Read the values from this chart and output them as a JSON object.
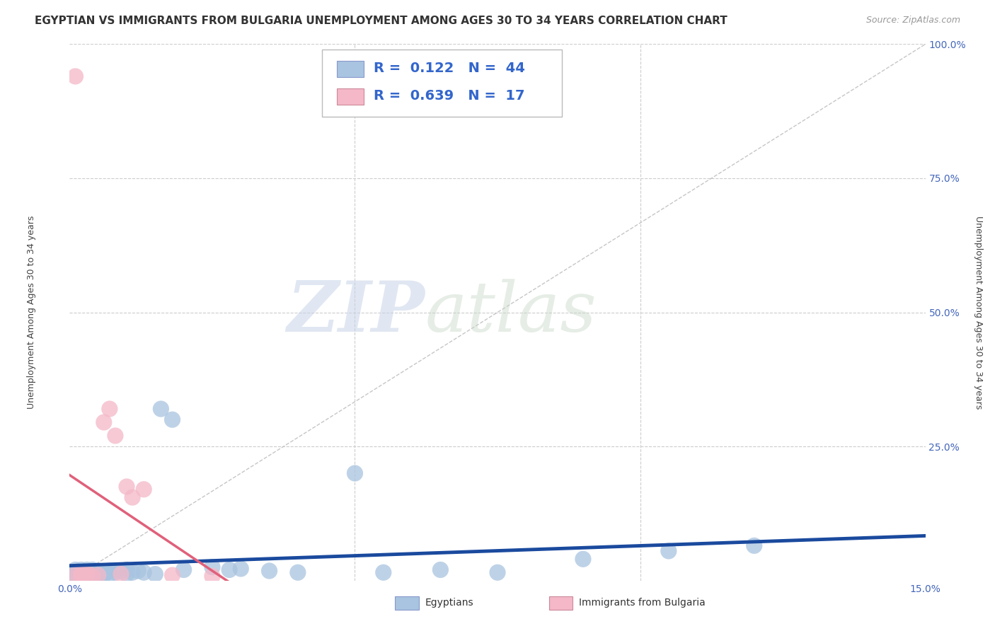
{
  "title": "EGYPTIAN VS IMMIGRANTS FROM BULGARIA UNEMPLOYMENT AMONG AGES 30 TO 34 YEARS CORRELATION CHART",
  "source": "Source: ZipAtlas.com",
  "ylabel": "Unemployment Among Ages 30 to 34 years",
  "xlim": [
    0.0,
    0.15
  ],
  "ylim": [
    0.0,
    1.0
  ],
  "xticks": [
    0.0,
    0.05,
    0.1,
    0.15
  ],
  "xticklabels": [
    "0.0%",
    "",
    "",
    "15.0%"
  ],
  "yticks": [
    0.0,
    0.25,
    0.5,
    0.75,
    1.0
  ],
  "yticklabels": [
    "",
    "25.0%",
    "50.0%",
    "75.0%",
    "100.0%"
  ],
  "color_egyptian": "#a8c4e0",
  "color_bulgaria": "#f4b8c8",
  "color_line_egyptian": "#1a4a9e",
  "color_line_bulgaria": "#e0607a",
  "color_diagonal": "#c8c8c8",
  "watermark_zip": "ZIP",
  "watermark_atlas": "atlas",
  "background_color": "#ffffff",
  "grid_color": "#cccccc",
  "egyptians_x": [
    0.001,
    0.001,
    0.001,
    0.002,
    0.002,
    0.002,
    0.002,
    0.003,
    0.003,
    0.003,
    0.003,
    0.004,
    0.004,
    0.004,
    0.005,
    0.005,
    0.005,
    0.006,
    0.006,
    0.007,
    0.007,
    0.008,
    0.009,
    0.01,
    0.01,
    0.011,
    0.012,
    0.013,
    0.015,
    0.016,
    0.018,
    0.02,
    0.025,
    0.028,
    0.03,
    0.035,
    0.04,
    0.05,
    0.055,
    0.065,
    0.075,
    0.09,
    0.105,
    0.12
  ],
  "egyptians_y": [
    0.01,
    0.015,
    0.02,
    0.005,
    0.01,
    0.015,
    0.02,
    0.008,
    0.012,
    0.016,
    0.02,
    0.01,
    0.015,
    0.02,
    0.008,
    0.012,
    0.018,
    0.01,
    0.015,
    0.012,
    0.018,
    0.015,
    0.018,
    0.012,
    0.02,
    0.015,
    0.018,
    0.015,
    0.012,
    0.32,
    0.3,
    0.02,
    0.025,
    0.02,
    0.022,
    0.018,
    0.015,
    0.2,
    0.015,
    0.02,
    0.015,
    0.04,
    0.055,
    0.065
  ],
  "bulgaria_x": [
    0.001,
    0.001,
    0.002,
    0.002,
    0.003,
    0.003,
    0.004,
    0.005,
    0.006,
    0.007,
    0.008,
    0.009,
    0.01,
    0.011,
    0.013,
    0.018,
    0.025
  ],
  "bulgaria_y": [
    0.01,
    0.94,
    0.008,
    0.012,
    0.01,
    0.015,
    0.008,
    0.01,
    0.295,
    0.32,
    0.27,
    0.012,
    0.175,
    0.155,
    0.17,
    0.01,
    0.008
  ],
  "title_fontsize": 11,
  "source_fontsize": 9,
  "axis_label_fontsize": 9,
  "tick_fontsize": 10,
  "legend_fontsize": 14,
  "legend_r1": "R =  0.122",
  "legend_n1": "N =  44",
  "legend_r2": "R =  0.639",
  "legend_n2": "N =  17"
}
